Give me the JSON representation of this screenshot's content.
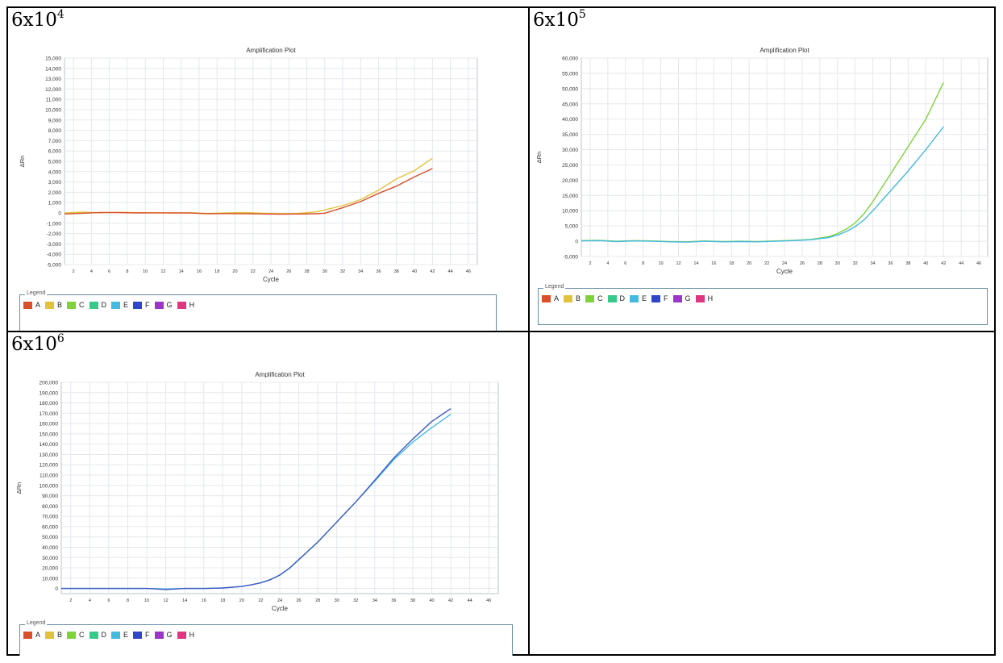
{
  "panels": [
    {
      "label_base": "6x10",
      "label_exp": "4"
    },
    {
      "label_base": "6x10",
      "label_exp": "5"
    },
    {
      "label_base": "6x10",
      "label_exp": "6"
    }
  ],
  "legend": {
    "title": "Legend",
    "items": [
      {
        "label": "A",
        "color": "#d9502c"
      },
      {
        "label": "B",
        "color": "#e2c23c"
      },
      {
        "label": "C",
        "color": "#7ed33b"
      },
      {
        "label": "D",
        "color": "#36c98a"
      },
      {
        "label": "E",
        "color": "#45b9e0"
      },
      {
        "label": "F",
        "color": "#2f46c9"
      },
      {
        "label": "G",
        "color": "#9b36c9"
      },
      {
        "label": "H",
        "color": "#e0357f"
      }
    ]
  },
  "chart_data": [
    {
      "type": "line",
      "title": "Amplification Plot",
      "xlabel": "Cycle",
      "ylabel": "ΔRn",
      "xlim": [
        1,
        47
      ],
      "ylim": [
        -5000,
        15000
      ],
      "xticks": [
        2,
        4,
        6,
        8,
        10,
        12,
        14,
        16,
        18,
        20,
        22,
        24,
        26,
        28,
        30,
        32,
        34,
        36,
        38,
        40,
        42,
        44,
        46
      ],
      "yticks": [
        -5000,
        -4000,
        -3000,
        -2000,
        -1000,
        0,
        1000,
        2000,
        3000,
        4000,
        5000,
        6000,
        7000,
        8000,
        9000,
        10000,
        11000,
        12000,
        13000,
        14000,
        15000
      ],
      "ytick_labels": [
        "-5,000",
        "-4,000",
        "-3,000",
        "-2,000",
        "-1,000",
        "0",
        "1,000",
        "2,000",
        "3,000",
        "4,000",
        "5,000",
        "6,000",
        "7,000",
        "8,000",
        "9,000",
        "10,000",
        "11,000",
        "12,000",
        "13,000",
        "14,000",
        "15,000"
      ],
      "grid": true,
      "series": [
        {
          "color": "#e2c23c",
          "x": [
            1,
            3,
            5,
            7,
            9,
            11,
            13,
            15,
            17,
            19,
            21,
            23,
            25,
            27,
            29,
            30,
            32,
            34,
            36,
            38,
            40,
            42
          ],
          "y": [
            0,
            80,
            10,
            60,
            30,
            20,
            10,
            20,
            -50,
            0,
            40,
            -20,
            -60,
            -50,
            100,
            300,
            700,
            1300,
            2200,
            3300,
            4100,
            5300
          ]
        },
        {
          "color": "#d9502c",
          "x": [
            1,
            3,
            5,
            7,
            9,
            11,
            13,
            15,
            17,
            19,
            21,
            23,
            25,
            27,
            29,
            30,
            32,
            34,
            36,
            38,
            40,
            42
          ],
          "y": [
            -100,
            -30,
            50,
            30,
            0,
            10,
            0,
            -10,
            -80,
            -60,
            -70,
            -90,
            -120,
            -100,
            -80,
            -20,
            500,
            1100,
            1900,
            2600,
            3500,
            4300
          ]
        }
      ]
    },
    {
      "type": "line",
      "title": "Amplification Plot",
      "xlabel": "Cycle",
      "ylabel": "ΔRn",
      "xlim": [
        1,
        47
      ],
      "ylim": [
        -5000,
        60000
      ],
      "xticks": [
        2,
        4,
        6,
        8,
        10,
        12,
        14,
        16,
        18,
        20,
        22,
        24,
        26,
        28,
        30,
        32,
        34,
        36,
        38,
        40,
        42,
        44,
        46
      ],
      "yticks": [
        -5000,
        0,
        5000,
        10000,
        15000,
        20000,
        25000,
        30000,
        35000,
        40000,
        45000,
        50000,
        55000,
        60000
      ],
      "ytick_labels": [
        "-5,000",
        "0",
        "5,000",
        "10,000",
        "15,000",
        "20,000",
        "25,000",
        "30,000",
        "35,000",
        "40,000",
        "45,000",
        "50,000",
        "55,000",
        "60,000"
      ],
      "grid": true,
      "series": [
        {
          "color": "#7ed33b",
          "x": [
            1,
            3,
            5,
            7,
            9,
            11,
            13,
            15,
            17,
            19,
            21,
            23,
            25,
            27,
            29,
            30,
            31,
            32,
            33,
            34,
            36,
            38,
            40,
            42
          ],
          "y": [
            200,
            300,
            0,
            200,
            100,
            -100,
            -200,
            100,
            -100,
            0,
            -100,
            100,
            300,
            600,
            1500,
            2500,
            4000,
            6000,
            9000,
            13000,
            22000,
            31000,
            40000,
            52000
          ]
        },
        {
          "color": "#45b9e0",
          "x": [
            1,
            3,
            5,
            7,
            9,
            11,
            13,
            15,
            17,
            19,
            21,
            23,
            25,
            27,
            29,
            30,
            31,
            32,
            33,
            34,
            36,
            38,
            40,
            42
          ],
          "y": [
            100,
            200,
            -100,
            100,
            0,
            -200,
            -300,
            0,
            -200,
            -100,
            -200,
            0,
            200,
            500,
            1200,
            2000,
            3200,
            4800,
            7000,
            10000,
            16500,
            23000,
            30000,
            37500
          ]
        }
      ]
    },
    {
      "type": "line",
      "title": "Amplification Plot",
      "xlabel": "Cycle",
      "ylabel": "ΔRn",
      "xlim": [
        1,
        47
      ],
      "ylim": [
        -5000,
        200000
      ],
      "xticks": [
        2,
        4,
        6,
        8,
        10,
        12,
        14,
        16,
        18,
        20,
        22,
        24,
        26,
        28,
        30,
        32,
        34,
        36,
        38,
        40,
        42,
        44,
        46
      ],
      "yticks": [
        0,
        10000,
        20000,
        30000,
        40000,
        50000,
        60000,
        70000,
        80000,
        90000,
        100000,
        110000,
        120000,
        130000,
        140000,
        150000,
        160000,
        170000,
        180000,
        190000,
        200000
      ],
      "ytick_labels": [
        "0",
        "10,000",
        "20,000",
        "30,000",
        "40,000",
        "50,000",
        "60,000",
        "70,000",
        "80,000",
        "90,000",
        "100,000",
        "110,000",
        "120,000",
        "130,000",
        "140,000",
        "150,000",
        "160,000",
        "170,000",
        "180,000",
        "190,000",
        "200,000"
      ],
      "grid": true,
      "series": [
        {
          "color": "#45b9e0",
          "x": [
            1,
            4,
            8,
            10,
            12,
            14,
            16,
            18,
            20,
            21,
            22,
            23,
            24,
            25,
            26,
            28,
            30,
            32,
            34,
            36,
            38,
            40,
            42
          ],
          "y": [
            0,
            0,
            0,
            0,
            -500,
            0,
            0,
            500,
            2000,
            3500,
            5500,
            8500,
            13000,
            19500,
            28000,
            45000,
            64500,
            84000,
            104000,
            125000,
            142000,
            156000,
            169000
          ]
        },
        {
          "color": "#3f5bc4",
          "x": [
            1,
            4,
            8,
            10,
            12,
            14,
            16,
            18,
            20,
            21,
            22,
            23,
            24,
            25,
            26,
            28,
            30,
            32,
            34,
            36,
            38,
            40,
            42
          ],
          "y": [
            0,
            0,
            0,
            0,
            -1000,
            0,
            0,
            500,
            2000,
            3500,
            5500,
            8500,
            13000,
            19500,
            28000,
            45000,
            64500,
            84000,
            105000,
            126500,
            145000,
            162000,
            174500
          ]
        }
      ]
    }
  ]
}
